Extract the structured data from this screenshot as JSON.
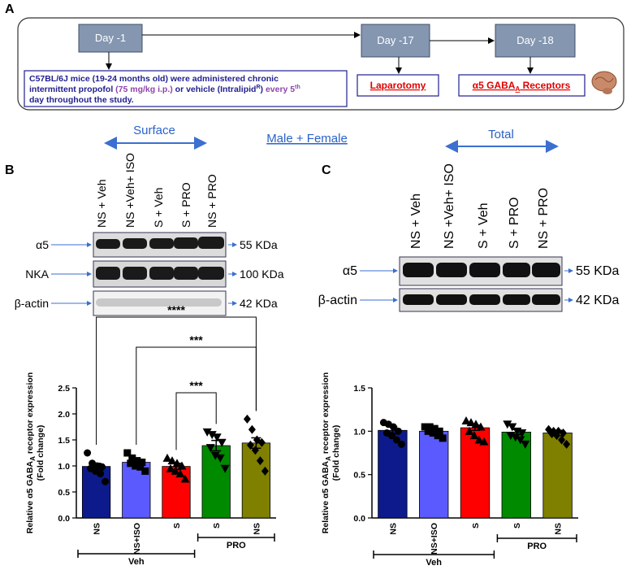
{
  "panel_a": {
    "label": "A",
    "steps": [
      "Day -1",
      "Day -17",
      "Day -18"
    ],
    "description": [
      "C57BL/6J mice (19-24 months old) were administered chronic",
      "intermittent propofol ",
      "(75 mg/kg i.p.)",
      " or vehicle (Intralipid",
      "R",
      ") ",
      "every 5",
      "th",
      "day throughout the study."
    ],
    "laparotomy": "Laparotomy",
    "receptors": [
      "α5  GABA",
      "A",
      " Receptors"
    ]
  },
  "header": {
    "surface": "Surface",
    "group": "Male + Female",
    "total": "Total"
  },
  "panel_b": {
    "label": "B",
    "lanes": [
      "NS + Veh",
      "NS +Veh+ ISO",
      "S + Veh",
      "S + PRO",
      "NS + PRO"
    ],
    "rows": [
      {
        "name": "α5",
        "size": "55 KDa"
      },
      {
        "name": "NKA",
        "size": "100 KDa"
      },
      {
        "name": "β-actin",
        "size": "42 KDa"
      }
    ]
  },
  "panel_c": {
    "label": "C",
    "lanes": [
      "NS + Veh",
      "NS +Veh+ ISO",
      "S + Veh",
      "S + PRO",
      "NS + PRO"
    ],
    "rows": [
      {
        "name": "α5",
        "size": "55 KDa"
      },
      {
        "name": "β-actin",
        "size": "42 KDa"
      }
    ]
  },
  "chart_data": [
    {
      "type": "bar",
      "y_label": [
        "Relative α5 GABA",
        "A",
        " receptor expression",
        "(Fold change)"
      ],
      "categories": [
        "NS",
        "NS+ISO",
        "S",
        "S",
        "NS"
      ],
      "values": [
        0.99,
        1.07,
        0.99,
        1.39,
        1.44
      ],
      "errors": [
        0.06,
        0.04,
        0.06,
        0.1,
        0.1
      ],
      "colors": [
        "#0c1a8c",
        "#5a5aff",
        "#ff0000",
        "#008a00",
        "#7f7f00"
      ],
      "markers": [
        "circle",
        "square",
        "triangle-up",
        "triangle-down",
        "diamond"
      ],
      "points": [
        [
          1.25,
          1.05,
          1.0,
          0.98,
          0.95,
          0.9,
          0.85,
          0.7
        ],
        [
          1.25,
          1.15,
          1.1,
          1.07,
          1.05,
          1.0,
          0.98,
          0.9
        ],
        [
          1.15,
          1.1,
          1.05,
          1.0,
          0.95,
          0.9,
          0.85,
          0.75
        ],
        [
          1.65,
          1.6,
          1.55,
          1.45,
          1.35,
          1.2,
          1.15,
          0.95
        ],
        [
          1.9,
          1.7,
          1.5,
          1.45,
          1.4,
          1.3,
          1.1,
          0.9
        ]
      ],
      "ylim": [
        0,
        2.5
      ],
      "yticks": [
        {
          "value": 0,
          "label": "0.0"
        },
        0.5,
        {
          "value": 1,
          "label": "1.0"
        },
        1.5,
        {
          "value": 2,
          "label": "2.0"
        },
        2.5
      ],
      "groups": [
        {
          "label": "Veh",
          "categories": [
            0,
            1,
            2
          ]
        },
        {
          "label": "PRO",
          "categories": [
            3,
            4
          ]
        }
      ],
      "significance": [
        {
          "text": "****",
          "between": [
            0,
            4
          ]
        },
        {
          "text": "***",
          "between": [
            1,
            4
          ]
        },
        {
          "text": "***",
          "between": [
            2,
            3
          ]
        }
      ]
    },
    {
      "type": "bar",
      "y_label": [
        "Relative α5 GABA",
        "A",
        " receptor expression",
        "(Fold change)"
      ],
      "categories": [
        "NS",
        "NS+ISO",
        "S",
        "S",
        "NS"
      ],
      "values": [
        1.01,
        1.0,
        1.04,
        0.99,
        0.98
      ],
      "errors": [
        0.04,
        0.02,
        0.03,
        0.03,
        0.03
      ],
      "colors": [
        "#0c1a8c",
        "#5a5aff",
        "#ff0000",
        "#008a00",
        "#7f7f00"
      ],
      "markers": [
        "circle",
        "square",
        "triangle-up",
        "triangle-down",
        "diamond"
      ],
      "points": [
        [
          1.1,
          1.08,
          1.05,
          1.0,
          0.98,
          0.95,
          0.9,
          0.85
        ],
        [
          1.05,
          1.05,
          1.03,
          1.0,
          1.0,
          0.98,
          0.95,
          0.92
        ],
        [
          1.12,
          1.1,
          1.08,
          1.05,
          1.0,
          0.95,
          0.9,
          0.88
        ],
        [
          1.08,
          1.05,
          1.0,
          0.98,
          0.95,
          0.93,
          0.9,
          0.85
        ],
        [
          1.02,
          1.0,
          1.0,
          0.98,
          0.97,
          0.95,
          0.9,
          0.85
        ]
      ],
      "ylim": [
        0,
        1.5
      ],
      "yticks": [
        {
          "value": 0,
          "label": "0.0"
        },
        0.5,
        {
          "value": 1,
          "label": "1.0"
        },
        1.5
      ],
      "groups": [
        {
          "label": "Veh",
          "categories": [
            0,
            1,
            2
          ]
        },
        {
          "label": "PRO",
          "categories": [
            3,
            4
          ]
        }
      ],
      "significance": []
    }
  ]
}
